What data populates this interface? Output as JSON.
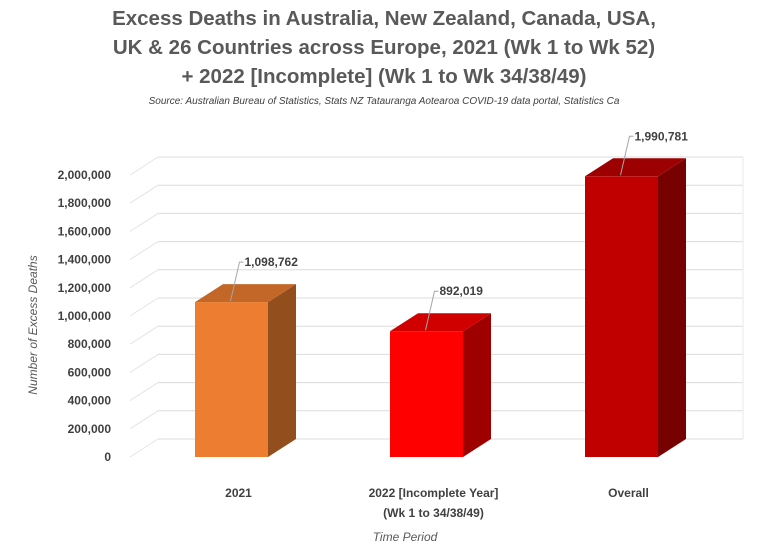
{
  "chart_data": {
    "type": "bar",
    "style": "3d-column",
    "title_lines": [
      "Excess Deaths in Australia, New Zealand, Canada, USA,",
      "UK & 26 Countries across Europe, 2021 (Wk 1 to Wk 52)",
      "+ 2022 [Incomplete] (Wk 1 to Wk 34/38/49)"
    ],
    "source": "Source: Australian Bureau of Statistics, Stats NZ Tatauranga Aotearoa COVID-19 data portal, Statistics Ca",
    "categories": [
      [
        "2021"
      ],
      [
        "2022 [Incomplete Year]",
        "(Wk 1 to 34/38/49)"
      ],
      [
        "Overall"
      ]
    ],
    "values": [
      1098762,
      892019,
      1990781
    ],
    "data_labels": [
      "1,098,762",
      "892,019",
      "1,990,781"
    ],
    "colors": [
      "#ED7D31",
      "#FF0000",
      "#C00000"
    ],
    "xlabel": "Time Period",
    "ylabel": "Number of Excess Deaths",
    "ylim": [
      0,
      2000000
    ],
    "ytick_step": 200000,
    "yticks": [
      "0",
      "200,000",
      "400,000",
      "600,000",
      "800,000",
      "1,000,000",
      "1,200,000",
      "1,400,000",
      "1,600,000",
      "1,800,000",
      "2,000,000"
    ],
    "grid": true,
    "legend": "none"
  }
}
